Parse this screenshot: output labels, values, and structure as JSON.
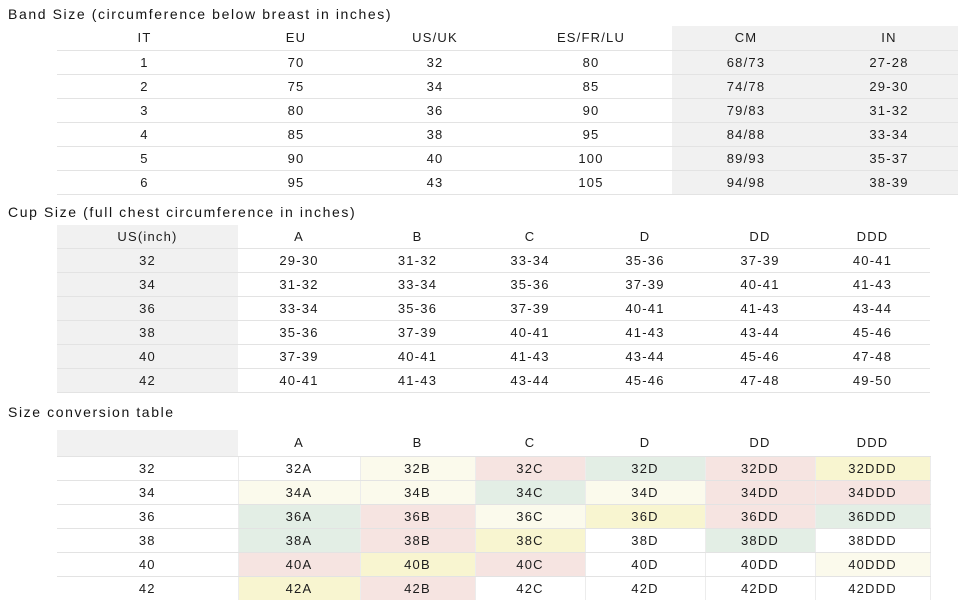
{
  "page": {
    "background": "#ffffff",
    "text_color": "#1c1c1c",
    "grid_line_color": "#e3e3e3",
    "header_fill": "#f1f1f1",
    "bottom_bar_color": "#3f3f3f"
  },
  "palette": {
    "white": "#ffffff",
    "cream": "#fbfaec",
    "yellow": "#f8f5d0",
    "pink": "#f6e4e1",
    "green": "#e3eee5"
  },
  "tables": [
    {
      "title": "Band Size (circumference below breast in inches)",
      "columns": [
        "IT",
        "EU",
        "US/UK",
        "ES/FR/LU",
        "CM",
        "IN"
      ],
      "highlight_cols": [
        4,
        5
      ],
      "rows": [
        [
          "1",
          "70",
          "32",
          "80",
          "68/73",
          "27-28"
        ],
        [
          "2",
          "75",
          "34",
          "85",
          "74/78",
          "29-30"
        ],
        [
          "3",
          "80",
          "36",
          "90",
          "79/83",
          "31-32"
        ],
        [
          "4",
          "85",
          "38",
          "95",
          "84/88",
          "33-34"
        ],
        [
          "5",
          "90",
          "40",
          "100",
          "89/93",
          "35-37"
        ],
        [
          "6",
          "95",
          "43",
          "105",
          "94/98",
          "38-39"
        ]
      ]
    },
    {
      "title": "Cup Size (full chest circumference in inches)",
      "columns": [
        "US(inch)",
        "A",
        "B",
        "C",
        "D",
        "DD",
        "DDD"
      ],
      "gray_first_col": true,
      "rows": [
        [
          "32",
          "29-30",
          "31-32",
          "33-34",
          "35-36",
          "37-39",
          "40-41"
        ],
        [
          "34",
          "31-32",
          "33-34",
          "35-36",
          "37-39",
          "40-41",
          "41-43"
        ],
        [
          "36",
          "33-34",
          "35-36",
          "37-39",
          "40-41",
          "41-43",
          "43-44"
        ],
        [
          "38",
          "35-36",
          "37-39",
          "40-41",
          "41-43",
          "43-44",
          "45-46"
        ],
        [
          "40",
          "37-39",
          "40-41",
          "41-43",
          "43-44",
          "45-46",
          "47-48"
        ],
        [
          "42",
          "40-41",
          "41-43",
          "43-44",
          "45-46",
          "47-48",
          "49-50"
        ]
      ]
    },
    {
      "title": "Size conversion table",
      "columns": [
        "",
        "A",
        "B",
        "C",
        "D",
        "DD",
        "DDD"
      ],
      "gray_header_first": true,
      "rows": [
        {
          "label": "32",
          "cells": [
            {
              "text": "32A",
              "color": "white"
            },
            {
              "text": "32B",
              "color": "cream"
            },
            {
              "text": "32C",
              "color": "pink"
            },
            {
              "text": "32D",
              "color": "green"
            },
            {
              "text": "32DD",
              "color": "pink"
            },
            {
              "text": "32DDD",
              "color": "yellow"
            }
          ]
        },
        {
          "label": "34",
          "cells": [
            {
              "text": "34A",
              "color": "cream"
            },
            {
              "text": "34B",
              "color": "cream"
            },
            {
              "text": "34C",
              "color": "green"
            },
            {
              "text": "34D",
              "color": "cream"
            },
            {
              "text": "34DD",
              "color": "pink"
            },
            {
              "text": "34DDD",
              "color": "pink"
            }
          ]
        },
        {
          "label": "36",
          "cells": [
            {
              "text": "36A",
              "color": "green"
            },
            {
              "text": "36B",
              "color": "pink"
            },
            {
              "text": "36C",
              "color": "cream"
            },
            {
              "text": "36D",
              "color": "yellow"
            },
            {
              "text": "36DD",
              "color": "pink"
            },
            {
              "text": "36DDD",
              "color": "green"
            }
          ]
        },
        {
          "label": "38",
          "cells": [
            {
              "text": "38A",
              "color": "green"
            },
            {
              "text": "38B",
              "color": "pink"
            },
            {
              "text": "38C",
              "color": "yellow"
            },
            {
              "text": "38D",
              "color": "white"
            },
            {
              "text": "38DD",
              "color": "green"
            },
            {
              "text": "38DDD",
              "color": "white"
            }
          ]
        },
        {
          "label": "40",
          "cells": [
            {
              "text": "40A",
              "color": "pink"
            },
            {
              "text": "40B",
              "color": "yellow"
            },
            {
              "text": "40C",
              "color": "pink"
            },
            {
              "text": "40D",
              "color": "white"
            },
            {
              "text": "40DD",
              "color": "white"
            },
            {
              "text": "40DDD",
              "color": "cream"
            }
          ]
        },
        {
          "label": "42",
          "cells": [
            {
              "text": "42A",
              "color": "yellow"
            },
            {
              "text": "42B",
              "color": "pink"
            },
            {
              "text": "42C",
              "color": "white"
            },
            {
              "text": "42D",
              "color": "white"
            },
            {
              "text": "42DD",
              "color": "white"
            },
            {
              "text": "42DDD",
              "color": "white"
            }
          ]
        }
      ]
    }
  ]
}
